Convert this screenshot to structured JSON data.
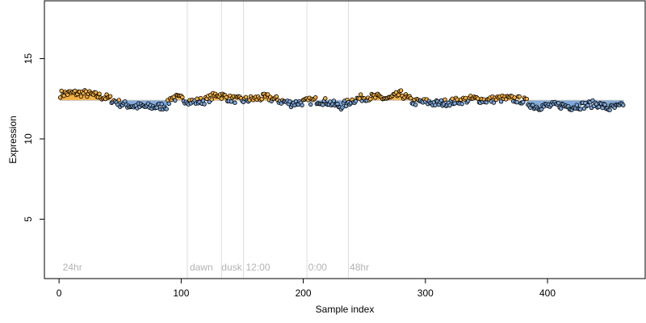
{
  "chart_data": {
    "type": "scatter",
    "title": "",
    "xlabel": "Sample index",
    "ylabel": "Expression",
    "xlim": [
      -12,
      480
    ],
    "ylim": [
      1.3,
      18.6
    ],
    "xticks": [
      0,
      100,
      200,
      300,
      400
    ],
    "yticks": [
      5,
      10,
      15
    ],
    "grid": false,
    "legend": "none",
    "colors": {
      "above": "#f5b041",
      "below": "#7da7d9",
      "baseline": "#bfbfbf",
      "divider": "#dcdcdc",
      "point_stroke": "#000000",
      "annotation": "#b3b3b3"
    },
    "baseline": 12.4,
    "vertical_lines": [
      105,
      133,
      151,
      203,
      237
    ],
    "annotations": [
      {
        "text": "24hr",
        "x": 3
      },
      {
        "text": "dawn",
        "x": 107
      },
      {
        "text": "dusk",
        "x": 133
      },
      {
        "text": "12:00",
        "x": 153
      },
      {
        "text": "0:00",
        "x": 204
      },
      {
        "text": "48hr",
        "x": 238
      }
    ],
    "annotation_y": 2.0,
    "trend_knots": [
      [
        1,
        12.8
      ],
      [
        10,
        12.85
      ],
      [
        20,
        12.85
      ],
      [
        30,
        12.7
      ],
      [
        40,
        12.55
      ],
      [
        50,
        12.2
      ],
      [
        60,
        12.05
      ],
      [
        70,
        12.0
      ],
      [
        80,
        12.0
      ],
      [
        88,
        12.05
      ],
      [
        92,
        12.6
      ],
      [
        100,
        12.5
      ],
      [
        110,
        12.3
      ],
      [
        120,
        12.4
      ],
      [
        130,
        12.8
      ],
      [
        140,
        12.5
      ],
      [
        150,
        12.4
      ],
      [
        160,
        12.5
      ],
      [
        170,
        12.6
      ],
      [
        180,
        12.4
      ],
      [
        190,
        12.2
      ],
      [
        200,
        12.3
      ],
      [
        210,
        12.4
      ],
      [
        220,
        12.3
      ],
      [
        230,
        12.0
      ],
      [
        240,
        12.4
      ],
      [
        250,
        12.6
      ],
      [
        260,
        12.6
      ],
      [
        270,
        12.5
      ],
      [
        280,
        12.8
      ],
      [
        290,
        12.3
      ],
      [
        300,
        12.3
      ],
      [
        310,
        12.2
      ],
      [
        320,
        12.3
      ],
      [
        330,
        12.4
      ],
      [
        340,
        12.5
      ],
      [
        350,
        12.4
      ],
      [
        360,
        12.5
      ],
      [
        370,
        12.5
      ],
      [
        380,
        12.4
      ],
      [
        390,
        12.0
      ],
      [
        400,
        12.05
      ],
      [
        410,
        12.1
      ],
      [
        420,
        12.0
      ],
      [
        430,
        12.1
      ],
      [
        440,
        12.2
      ],
      [
        450,
        11.9
      ],
      [
        460,
        12.0
      ],
      [
        462,
        12.2
      ]
    ],
    "n_points": 462
  }
}
